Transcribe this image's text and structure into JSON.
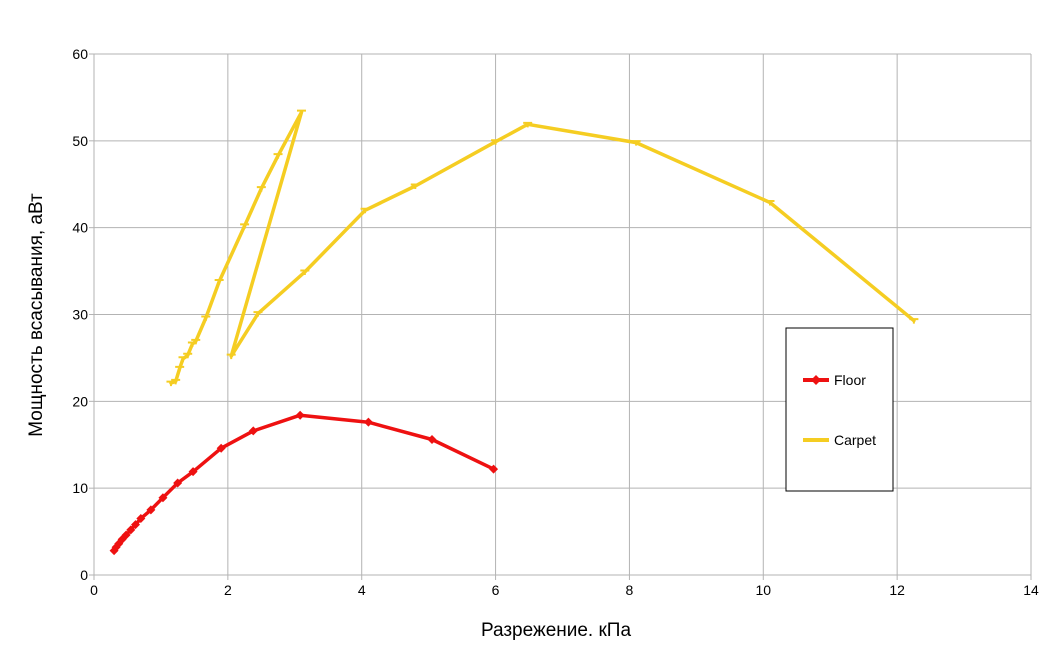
{
  "chart_data": {
    "type": "line",
    "title": "",
    "xlabel": "Разрежение. кПа",
    "ylabel": "Мощность всасывания, аВт",
    "xlim": [
      0,
      14
    ],
    "ylim": [
      0,
      60
    ],
    "x_ticks": [
      "0",
      "2",
      "4",
      "6",
      "8",
      "10",
      "12",
      "14"
    ],
    "y_ticks": [
      "0",
      "10",
      "20",
      "30",
      "40",
      "50",
      "60"
    ],
    "grid": true,
    "legend_position": "right",
    "series": [
      {
        "name": "Floor",
        "color": "#ee1111",
        "marker": "diamond",
        "points": [
          [
            0.3,
            2.8
          ],
          [
            0.33,
            3.2
          ],
          [
            0.37,
            3.6
          ],
          [
            0.42,
            4.1
          ],
          [
            0.48,
            4.6
          ],
          [
            0.55,
            5.2
          ],
          [
            0.62,
            5.8
          ],
          [
            0.7,
            6.5
          ],
          [
            0.85,
            7.5
          ],
          [
            1.03,
            8.9
          ],
          [
            1.25,
            10.6
          ],
          [
            1.48,
            11.9
          ],
          [
            1.9,
            14.6
          ],
          [
            2.38,
            16.6
          ],
          [
            3.08,
            18.4
          ],
          [
            4.1,
            17.6
          ],
          [
            5.05,
            15.6
          ],
          [
            5.97,
            12.2
          ]
        ]
      },
      {
        "name": "Carpet",
        "color": "#f5cd22",
        "marker": "tick",
        "points": [
          [
            1.15,
            22.1
          ],
          [
            1.22,
            22.3
          ],
          [
            1.28,
            23.8
          ],
          [
            1.33,
            24.9
          ],
          [
            1.4,
            25.3
          ],
          [
            1.47,
            26.6
          ],
          [
            1.52,
            26.9
          ],
          [
            1.67,
            29.6
          ],
          [
            1.87,
            33.8
          ],
          [
            2.25,
            40.2
          ],
          [
            2.5,
            44.5
          ],
          [
            2.75,
            48.3
          ],
          [
            3.1,
            53.3
          ],
          [
            2.05,
            25.2
          ],
          [
            2.45,
            30.1
          ],
          [
            3.15,
            34.9
          ],
          [
            4.05,
            42.0
          ],
          [
            4.8,
            44.8
          ],
          [
            6.0,
            49.9
          ],
          [
            6.48,
            51.9
          ],
          [
            8.1,
            49.8
          ],
          [
            10.1,
            42.9
          ],
          [
            12.25,
            29.3
          ]
        ]
      }
    ]
  }
}
